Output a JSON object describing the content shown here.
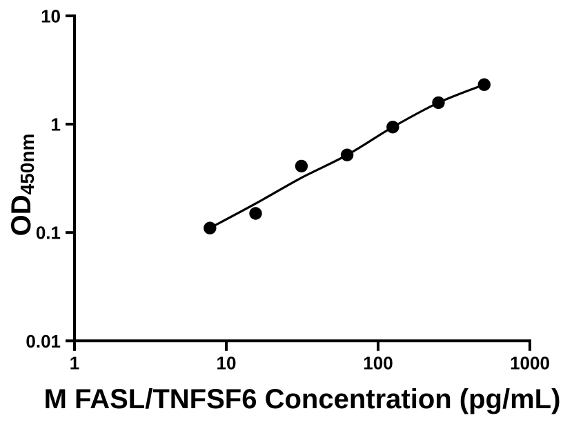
{
  "figure": {
    "background": "#ffffff",
    "ink_color": "#000000"
  },
  "chart_data": {
    "type": "scatter",
    "xlabel": "M FASL/TNFSF6 Concentration (pg/mL)",
    "ylabel_main": "OD",
    "ylabel_sub": "450nm",
    "x_scale": "log",
    "y_scale": "log",
    "xlim": [
      1,
      1000
    ],
    "ylim": [
      0.01,
      10
    ],
    "x_ticks": [
      "1",
      "10",
      "100",
      "1000"
    ],
    "y_ticks": [
      "10",
      "1",
      "0.1",
      "0.01"
    ],
    "grid": false,
    "legend": false,
    "marker_color": "#000000",
    "line_color": "#000000",
    "series": [
      {
        "name": "standard-points",
        "type": "scatter",
        "x": [
          7.8,
          15.6,
          31.25,
          62.5,
          125,
          250,
          500
        ],
        "y": [
          0.11,
          0.15,
          0.41,
          0.52,
          0.94,
          1.58,
          2.32
        ]
      },
      {
        "name": "fit-curve",
        "type": "line",
        "x": [
          7.8,
          15.6,
          31.25,
          62.5,
          125,
          250,
          500
        ],
        "y": [
          0.11,
          0.185,
          0.32,
          0.52,
          0.94,
          1.58,
          2.32
        ]
      }
    ]
  }
}
